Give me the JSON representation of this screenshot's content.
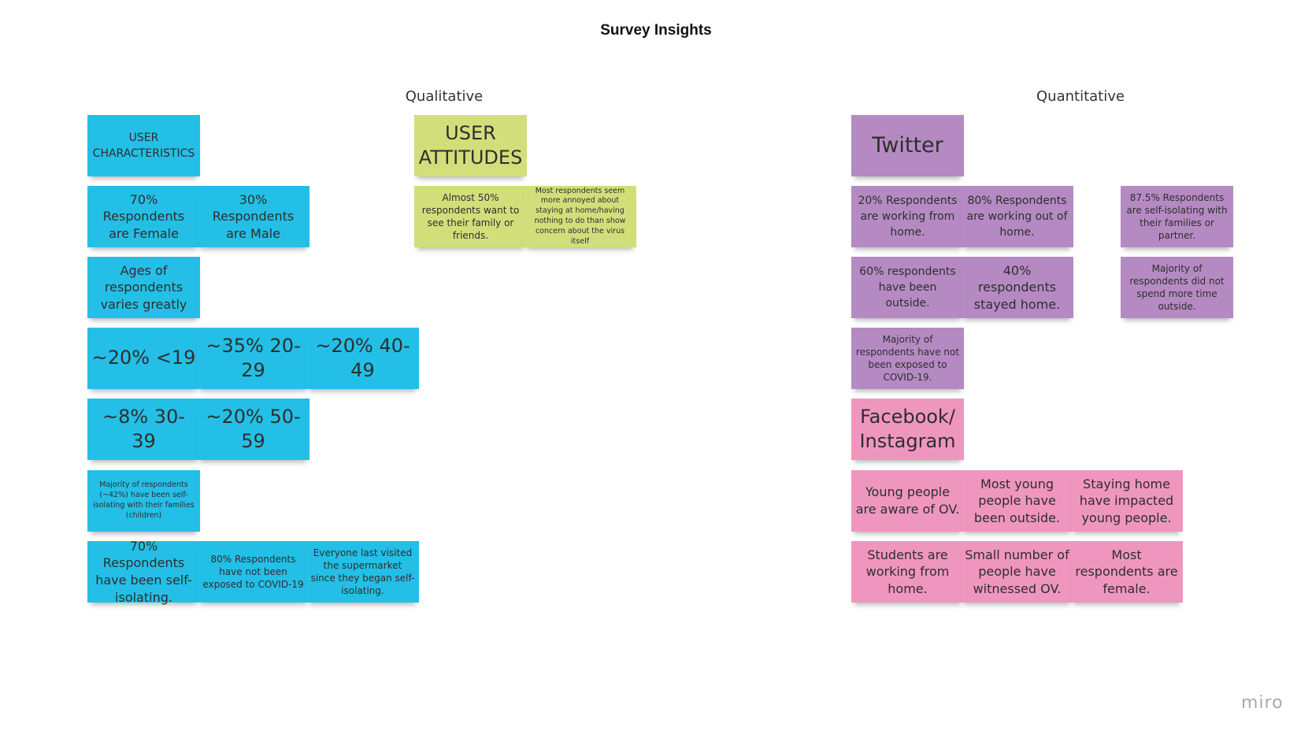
{
  "board": {
    "title": "Survey Insights",
    "qualitative_label": "Qualitative",
    "quantitative_label": "Quantitative",
    "logo": "miro"
  },
  "colors": {
    "blue": "#24bfe6",
    "green": "#d1df7a",
    "purple": "#b58ac3",
    "pink": "#ef96bf"
  },
  "qualitative": {
    "user_characteristics": {
      "header": "USER CHARACTERISTICS",
      "female": "70% Respondents are Female",
      "male": "30% Respondents are Male",
      "ages": "Ages of respondents varies greatly",
      "age_under_19": "~20% <19",
      "age_20_29": "~35% 20-29",
      "age_40_49": "~20% 40-49",
      "age_30_39": "~8% 30-39",
      "age_50_59": "~20% 50-59",
      "self_isolating_families": "Majority of respondents (~42%) have been self-isolating with their families (children)",
      "self_isolating": "70% Respondents have been self-isolating.",
      "not_exposed": "80% Respondents have not been exposed to COVID-19",
      "supermarket": "Everyone last visited the supermarket since they began self-isolating."
    },
    "user_attitudes": {
      "header": "USER ATTITUDES",
      "family_friends": "Almost 50% respondents want to see their family or friends.",
      "annoyed": "Most respondents seem more annoyed about staying at home/having nothing to do than show concern about the virus itself"
    }
  },
  "quantitative": {
    "twitter": {
      "header": "Twitter",
      "working_from_home": "20% Respondents are working from home.",
      "working_out": "80% Respondents are working out of home.",
      "self_isolating_families": "87.5% Respondents are self-isolating with their families or partner.",
      "been_outside": "60% respondents have been outside.",
      "stayed_home": "40% respondents stayed home.",
      "no_more_time_outside": "Majority of respondents did not spend more time outside.",
      "not_exposed": "Majority of respondents have not been exposed to COVID-19."
    },
    "facebook_instagram": {
      "header": "Facebook/ Instagram",
      "aware_ov": "Young people are aware of OV.",
      "been_outside": "Most young people have been outside.",
      "impacted": "Staying home have impacted young people.",
      "students": "Students are working from home.",
      "witnessed": "Small number of people have witnessed OV.",
      "female": "Most respondents are female."
    }
  }
}
